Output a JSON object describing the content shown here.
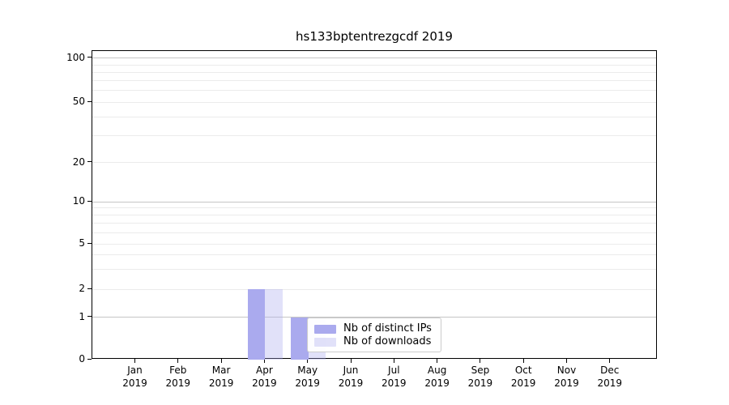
{
  "figure": {
    "background": "#ffffff",
    "axis_color": "#000000",
    "grid_major_color": "#c6c6c6",
    "grid_minor_color": "#ebebeb",
    "text_color": "#000000"
  },
  "chart_data": {
    "type": "bar",
    "title": "hs133bptentrezgcdf 2019",
    "x": {
      "months": [
        "Jan",
        "Feb",
        "Mar",
        "Apr",
        "May",
        "Jun",
        "Jul",
        "Aug",
        "Sep",
        "Oct",
        "Nov",
        "Dec"
      ],
      "year": "2019"
    },
    "series": [
      {
        "name": "Nb of distinct IPs",
        "color": "#aaaaee",
        "fill_opacity": 1,
        "values": [
          0,
          0,
          0,
          2,
          1,
          0,
          0,
          0,
          0,
          0,
          0,
          0
        ]
      },
      {
        "name": "Nb of downloads",
        "color": "#aaaaee",
        "fill_opacity": 0.35,
        "values": [
          0,
          0,
          0,
          2,
          1,
          0,
          0,
          0,
          0,
          0,
          0,
          0
        ]
      }
    ],
    "yscale": "symlog",
    "ylim": [
      0,
      110
    ],
    "yticks": [
      0,
      1,
      2,
      5,
      10,
      20,
      50,
      100
    ],
    "y_major_gridlines": [
      1,
      10,
      100
    ],
    "y_minor_gridlines": [
      3,
      4,
      6,
      7,
      8,
      9,
      30,
      40,
      60,
      70,
      80,
      90
    ],
    "grid": "horizontal",
    "legend_position": "inside-bottom-center"
  }
}
